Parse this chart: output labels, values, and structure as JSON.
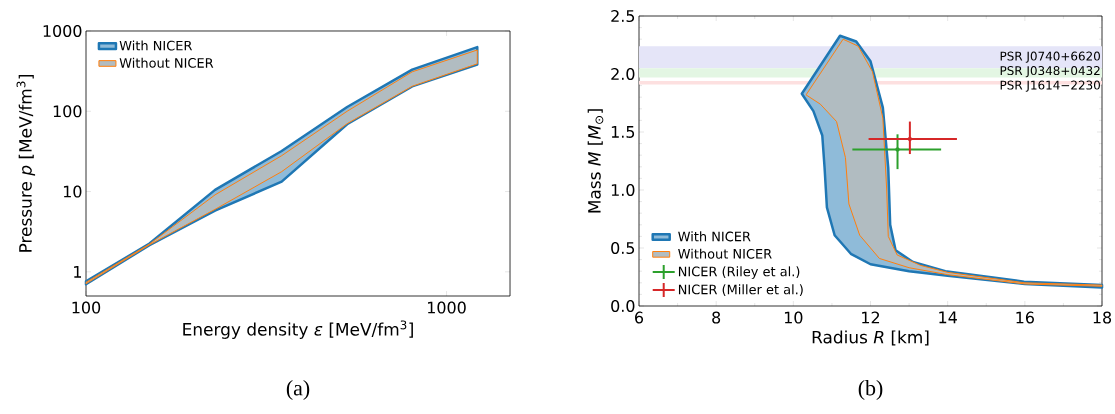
{
  "chart_data": [
    {
      "type": "area",
      "xlabel": "Energy density *ε* [MeV/fm$^{3}$]",
      "ylabel": "Pressure *p* [MeV/fm$^{3}$]",
      "log": "xy",
      "xlim": [
        100,
        1500
      ],
      "ylim": [
        0.5,
        1000
      ],
      "xticks": [
        100,
        1000
      ],
      "yticks": [
        1,
        10,
        100,
        1000
      ],
      "legend": "top left",
      "series": [
        {
          "name": "With NICER",
          "color": "#1f77b4",
          "x": [
            100,
            150,
            228,
            349,
            530,
            803,
            1217,
            1217,
            803,
            530,
            349,
            228,
            150,
            100
          ],
          "values": [
            0.76,
            2.25,
            10.5,
            32,
            113,
            330,
            630,
            382,
            204,
            69,
            13.3,
            5.8,
            2.15,
            0.7
          ]
        },
        {
          "name": "Without NICER",
          "color": "#ff7f0e",
          "x": [
            100,
            150,
            228,
            349,
            530,
            803,
            1217,
            1217,
            803,
            530,
            349,
            228,
            150,
            100
          ],
          "values": [
            0.74,
            2.22,
            9.1,
            28,
            100,
            310,
            580,
            390,
            205,
            70,
            17.7,
            6.0,
            2.17,
            0.71
          ]
        }
      ],
      "annotations": [
        "(a)"
      ]
    },
    {
      "type": "area",
      "xlabel": "Radius *R* [km]",
      "ylabel": "Mass *M* [*M*$_{⊙}$]",
      "xlim": [
        6,
        18
      ],
      "ylim": [
        0,
        2.5
      ],
      "xticks": [
        6,
        8,
        10,
        12,
        14,
        16,
        18
      ],
      "yticks": [
        {
          "value": 0,
          "label": "0.0"
        },
        0.5,
        {
          "value": 1,
          "label": "1.0"
        },
        1.5,
        {
          "value": 2,
          "label": "2.0"
        },
        2.5
      ],
      "legend": "bottom left",
      "bands": [
        {
          "axis": "y",
          "from": 2.05,
          "to": 2.24,
          "label": "PSR J0740+6620",
          "color": "#e5e5f8"
        },
        {
          "axis": "y",
          "from": 1.97,
          "to": 2.05,
          "label": "PSR J0348+0432",
          "color": "#e3f6e3"
        },
        {
          "axis": "y",
          "from": 1.91,
          "to": 1.94,
          "label": "PSR J1614−2230",
          "color": "#fde0e0"
        }
      ],
      "series": [
        {
          "name": "With NICER",
          "color": "#1f77b4",
          "x": [
            10.22,
            11.21,
            11.63,
            12.0,
            12.32,
            12.46,
            12.51,
            12.65,
            13.1,
            13.94,
            15.98,
            18,
            18,
            16,
            14,
            13,
            12,
            11.49,
            11.07,
            10.87,
            10.81,
            10.75,
            10.52
          ],
          "values": [
            1.83,
            2.33,
            2.28,
            2.11,
            1.71,
            1.19,
            0.7,
            0.48,
            0.38,
            0.3,
            0.21,
            0.18,
            0.16,
            0.19,
            0.26,
            0.3,
            0.36,
            0.45,
            0.61,
            0.85,
            1.19,
            1.47,
            1.68
          ]
        },
        {
          "name": "Without NICER",
          "color": "#ff7f0e",
          "x": [
            10.33,
            11.29,
            11.68,
            12.05,
            12.32,
            12.42,
            12.46,
            12.69,
            13.3,
            14,
            16,
            18,
            18,
            16,
            14,
            13,
            12.23,
            11.72,
            11.44,
            11.35,
            11.12,
            10.7
          ],
          "values": [
            1.82,
            2.3,
            2.24,
            2.02,
            1.62,
            1.0,
            0.6,
            0.44,
            0.35,
            0.29,
            0.2,
            0.18,
            0.17,
            0.19,
            0.27,
            0.33,
            0.41,
            0.61,
            0.88,
            1.28,
            1.59,
            1.74
          ]
        },
        {
          "name": "NICER (Riley et al.)",
          "type": "scatter",
          "color": "#2ca02c",
          "x": [
            12.7
          ],
          "values": [
            1.35
          ],
          "xerrors": [
            [
              11.53,
              13.83
            ]
          ],
          "errors": [
            [
              1.18,
              1.48
            ]
          ]
        },
        {
          "name": "NICER (Miller et al.)",
          "type": "scatter",
          "color": "#d62728",
          "x": [
            13.02
          ],
          "values": [
            1.44
          ],
          "xerrors": [
            [
              11.95,
              14.24
            ]
          ],
          "errors": [
            [
              1.31,
              1.59
            ]
          ]
        }
      ],
      "annotations": [
        "(b)"
      ]
    }
  ]
}
